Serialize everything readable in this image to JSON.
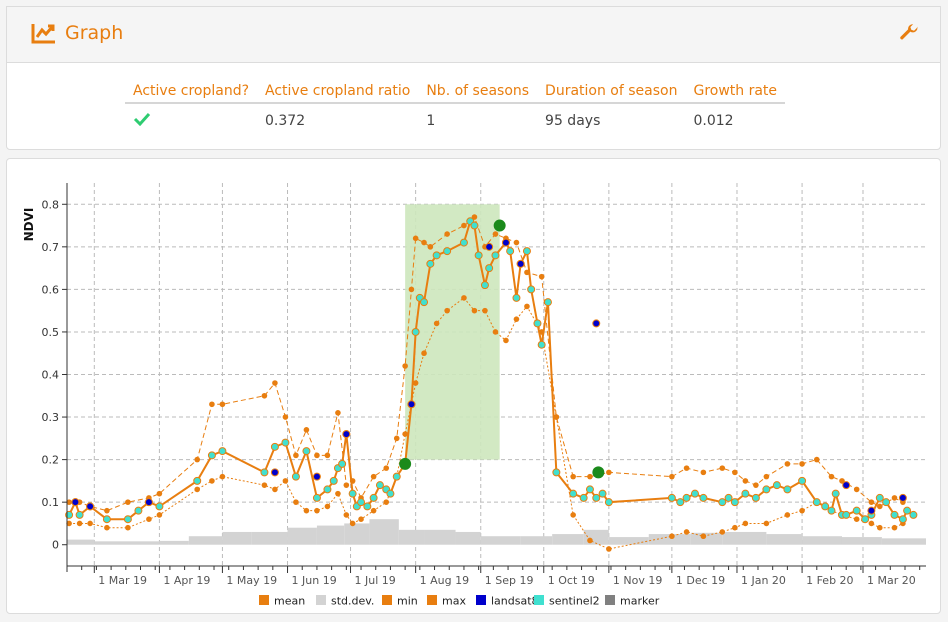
{
  "header": {
    "title": "Graph",
    "icon": "chart-line-icon",
    "settings_icon": "wrench-icon"
  },
  "summary": {
    "columns": [
      "Active cropland?",
      "Active cropland ratio",
      "Nb. of seasons",
      "Duration of season",
      "Growth rate"
    ],
    "values": {
      "active_cropland_icon": "check-icon",
      "ratio": "0.372",
      "seasons": "1",
      "duration": "95 days",
      "growth_rate": "0.012"
    }
  },
  "colors": {
    "accent": "#e87e10",
    "check": "#2ecc71",
    "season": "#cde7bd",
    "marker": "#1b8a1b",
    "landsat8": "#0000cc",
    "sentinel2": "#40e0d0",
    "stddev": "#d3d3d3",
    "gray": "#808080"
  },
  "chart_data": {
    "type": "line",
    "ylabel": "NDVI",
    "ylim": [
      -0.05,
      0.85
    ],
    "yticks": [
      0,
      0.1,
      0.2,
      0.3,
      0.4,
      0.5,
      0.6,
      0.7,
      0.8
    ],
    "ytick_labels": [
      "0",
      "0.1",
      "0.2",
      "0.3",
      "0.4",
      "0.5",
      "0.6",
      "0.7",
      "0.8"
    ],
    "xlim": [
      "2019-02-16",
      "2020-03-31"
    ],
    "xticks": [
      "2019-03-01",
      "2019-04-01",
      "2019-05-01",
      "2019-06-01",
      "2019-07-01",
      "2019-08-01",
      "2019-09-01",
      "2019-10-01",
      "2019-11-01",
      "2019-12-01",
      "2020-01-01",
      "2020-02-01",
      "2020-03-01"
    ],
    "xtick_labels": [
      "1 Mar 19",
      "1 Apr 19",
      "1 May 19",
      "1 Jun 19",
      "1 Jul 19",
      "1 Aug 19",
      "1 Sep 19",
      "1 Oct 19",
      "1 Nov 19",
      "1 Dec 19",
      "1 Jan 20",
      "1 Feb 20",
      "1 Mar 20"
    ],
    "grid": true,
    "legend_position": "bottom",
    "legend": [
      "mean",
      "std.dev.",
      "min",
      "max",
      "landsat8",
      "sentinel2",
      "marker"
    ],
    "season": {
      "start": "2019-07-27",
      "end": "2019-09-10",
      "ylim": [
        0.2,
        0.8
      ]
    },
    "mean": {
      "dates": [
        "2019-02-17",
        "2019-02-20",
        "2019-02-22",
        "2019-02-27",
        "2019-03-07",
        "2019-03-17",
        "2019-03-22",
        "2019-03-27",
        "2019-04-01",
        "2019-04-19",
        "2019-04-26",
        "2019-05-01",
        "2019-05-21",
        "2019-05-26",
        "2019-05-31",
        "2019-06-05",
        "2019-06-10",
        "2019-06-15",
        "2019-06-20",
        "2019-06-23",
        "2019-06-25",
        "2019-06-27",
        "2019-06-29",
        "2019-07-02",
        "2019-07-04",
        "2019-07-06",
        "2019-07-09",
        "2019-07-12",
        "2019-07-15",
        "2019-07-18",
        "2019-07-20",
        "2019-07-23",
        "2019-07-27",
        "2019-07-30",
        "2019-08-01",
        "2019-08-03",
        "2019-08-05",
        "2019-08-08",
        "2019-08-11",
        "2019-08-16",
        "2019-08-24",
        "2019-08-27",
        "2019-08-29",
        "2019-08-31",
        "2019-09-03",
        "2019-09-05",
        "2019-09-08",
        "2019-09-13",
        "2019-09-15",
        "2019-09-18",
        "2019-09-20",
        "2019-09-23",
        "2019-09-25",
        "2019-09-28",
        "2019-09-30",
        "2019-10-03",
        "2019-10-07",
        "2019-10-15",
        "2019-10-20",
        "2019-10-23",
        "2019-10-26",
        "2019-10-29",
        "2019-11-01",
        "2019-12-01",
        "2019-12-05",
        "2019-12-08",
        "2019-12-12",
        "2019-12-16",
        "2019-12-25",
        "2019-12-28",
        "2019-12-31",
        "2020-01-05",
        "2020-01-10",
        "2020-01-15",
        "2020-01-20",
        "2020-01-25",
        "2020-02-01",
        "2020-02-08",
        "2020-02-12",
        "2020-02-15",
        "2020-02-17",
        "2020-02-20",
        "2020-02-22",
        "2020-02-27",
        "2020-03-02",
        "2020-03-05",
        "2020-03-09",
        "2020-03-12",
        "2020-03-16",
        "2020-03-20",
        "2020-03-22",
        "2020-03-25"
      ],
      "values": [
        0.07,
        0.1,
        0.07,
        0.09,
        0.06,
        0.06,
        0.08,
        0.1,
        0.09,
        0.15,
        0.21,
        0.22,
        0.17,
        0.23,
        0.24,
        0.16,
        0.22,
        0.11,
        0.13,
        0.15,
        0.18,
        0.19,
        0.26,
        0.12,
        0.09,
        0.1,
        0.09,
        0.11,
        0.14,
        0.13,
        0.12,
        0.16,
        0.19,
        0.33,
        0.5,
        0.58,
        0.57,
        0.66,
        0.68,
        0.69,
        0.71,
        0.76,
        0.75,
        0.68,
        0.61,
        0.65,
        0.68,
        0.71,
        0.69,
        0.58,
        0.66,
        0.69,
        0.6,
        0.52,
        0.47,
        0.57,
        0.17,
        0.12,
        0.11,
        0.13,
        0.11,
        0.12,
        0.1,
        0.11,
        0.1,
        0.11,
        0.12,
        0.11,
        0.1,
        0.11,
        0.1,
        0.12,
        0.11,
        0.13,
        0.14,
        0.13,
        0.15,
        0.1,
        0.09,
        0.08,
        0.12,
        0.07,
        0.07,
        0.08,
        0.06,
        0.07,
        0.11,
        0.1,
        0.07,
        0.06,
        0.08,
        0.07
      ]
    },
    "max": {
      "dates": [
        "2019-02-17",
        "2019-02-22",
        "2019-02-27",
        "2019-03-07",
        "2019-03-17",
        "2019-03-27",
        "2019-04-01",
        "2019-04-19",
        "2019-04-26",
        "2019-05-01",
        "2019-05-21",
        "2019-05-26",
        "2019-05-31",
        "2019-06-05",
        "2019-06-10",
        "2019-06-15",
        "2019-06-20",
        "2019-06-25",
        "2019-06-29",
        "2019-07-02",
        "2019-07-06",
        "2019-07-12",
        "2019-07-18",
        "2019-07-23",
        "2019-07-27",
        "2019-07-30",
        "2019-08-01",
        "2019-08-05",
        "2019-08-08",
        "2019-08-16",
        "2019-08-24",
        "2019-08-27",
        "2019-08-29",
        "2019-09-03",
        "2019-09-08",
        "2019-09-13",
        "2019-09-18",
        "2019-09-23",
        "2019-09-30",
        "2019-10-07",
        "2019-10-15",
        "2019-10-23",
        "2019-11-01",
        "2019-12-01",
        "2019-12-08",
        "2019-12-16",
        "2019-12-25",
        "2019-12-31",
        "2020-01-05",
        "2020-01-10",
        "2020-01-15",
        "2020-01-25",
        "2020-02-01",
        "2020-02-08",
        "2020-02-15",
        "2020-02-20",
        "2020-02-27",
        "2020-03-05",
        "2020-03-09",
        "2020-03-16",
        "2020-03-20"
      ],
      "values": [
        0.1,
        0.1,
        0.09,
        0.08,
        0.1,
        0.11,
        0.12,
        0.2,
        0.33,
        0.33,
        0.35,
        0.38,
        0.3,
        0.21,
        0.27,
        0.21,
        0.21,
        0.31,
        0.14,
        0.15,
        0.11,
        0.16,
        0.18,
        0.25,
        0.42,
        0.6,
        0.72,
        0.71,
        0.7,
        0.73,
        0.75,
        0.76,
        0.77,
        0.7,
        0.73,
        0.72,
        0.71,
        0.64,
        0.63,
        0.3,
        0.16,
        0.16,
        0.17,
        0.16,
        0.18,
        0.17,
        0.18,
        0.17,
        0.15,
        0.14,
        0.16,
        0.19,
        0.19,
        0.2,
        0.16,
        0.15,
        0.13,
        0.1,
        0.09,
        0.11,
        0.1
      ]
    },
    "min": {
      "dates": [
        "2019-02-17",
        "2019-02-22",
        "2019-02-27",
        "2019-03-07",
        "2019-03-17",
        "2019-03-27",
        "2019-04-01",
        "2019-04-19",
        "2019-04-26",
        "2019-05-01",
        "2019-05-21",
        "2019-05-26",
        "2019-05-31",
        "2019-06-05",
        "2019-06-10",
        "2019-06-15",
        "2019-06-20",
        "2019-06-25",
        "2019-06-29",
        "2019-07-02",
        "2019-07-06",
        "2019-07-12",
        "2019-07-18",
        "2019-07-23",
        "2019-07-27",
        "2019-08-01",
        "2019-08-05",
        "2019-08-11",
        "2019-08-16",
        "2019-08-24",
        "2019-08-29",
        "2019-09-03",
        "2019-09-08",
        "2019-09-13",
        "2019-09-18",
        "2019-09-23",
        "2019-09-30",
        "2019-10-07",
        "2019-10-15",
        "2019-10-23",
        "2019-11-01",
        "2019-12-01",
        "2019-12-08",
        "2019-12-16",
        "2019-12-25",
        "2019-12-31",
        "2020-01-05",
        "2020-01-15",
        "2020-01-25",
        "2020-02-01",
        "2020-02-08",
        "2020-02-15",
        "2020-02-20",
        "2020-02-27",
        "2020-03-05",
        "2020-03-09",
        "2020-03-16",
        "2020-03-20"
      ],
      "values": [
        0.05,
        0.05,
        0.05,
        0.04,
        0.04,
        0.06,
        0.07,
        0.13,
        0.15,
        0.16,
        0.14,
        0.13,
        0.15,
        0.1,
        0.08,
        0.08,
        0.09,
        0.12,
        0.07,
        0.05,
        0.06,
        0.08,
        0.1,
        0.16,
        0.26,
        0.38,
        0.45,
        0.52,
        0.55,
        0.58,
        0.55,
        0.55,
        0.5,
        0.48,
        0.53,
        0.56,
        0.5,
        0.3,
        0.07,
        0.01,
        -0.01,
        0.02,
        0.03,
        0.02,
        0.03,
        0.04,
        0.05,
        0.05,
        0.07,
        0.08,
        0.1,
        0.08,
        0.07,
        0.06,
        0.05,
        0.04,
        0.04,
        0.05
      ]
    },
    "stddev": {
      "dates": [
        "2019-02-16",
        "2019-03-01",
        "2019-04-01",
        "2019-04-15",
        "2019-05-01",
        "2019-05-15",
        "2019-06-01",
        "2019-06-15",
        "2019-06-28",
        "2019-07-10",
        "2019-07-24",
        "2019-08-05",
        "2019-08-20",
        "2019-09-01",
        "2019-09-20",
        "2019-10-05",
        "2019-10-20",
        "2019-11-01",
        "2019-11-20",
        "2019-12-10",
        "2019-12-25",
        "2020-01-15",
        "2020-02-01",
        "2020-02-20",
        "2020-03-10",
        "2020-03-31"
      ],
      "values": [
        0.012,
        0.008,
        0.009,
        0.02,
        0.03,
        0.03,
        0.04,
        0.045,
        0.05,
        0.06,
        0.035,
        0.035,
        0.03,
        0.02,
        0.02,
        0.025,
        0.035,
        0.018,
        0.025,
        0.028,
        0.03,
        0.025,
        0.02,
        0.018,
        0.015,
        0.012
      ]
    },
    "landsat8": {
      "dates": [
        "2019-02-20",
        "2019-02-27",
        "2019-03-27",
        "2019-05-26",
        "2019-06-15",
        "2019-06-29",
        "2019-07-30",
        "2019-09-05",
        "2019-09-13",
        "2019-09-20",
        "2019-10-26",
        "2020-02-22",
        "2020-03-05",
        "2020-03-20"
      ],
      "values": [
        0.1,
        0.09,
        0.1,
        0.17,
        0.16,
        0.26,
        0.33,
        0.7,
        0.71,
        0.66,
        0.52,
        0.14,
        0.08,
        0.11
      ]
    },
    "markers": {
      "dates": [
        "2019-07-27",
        "2019-09-10",
        "2019-10-27"
      ],
      "values": [
        0.19,
        0.75,
        0.17
      ]
    }
  }
}
